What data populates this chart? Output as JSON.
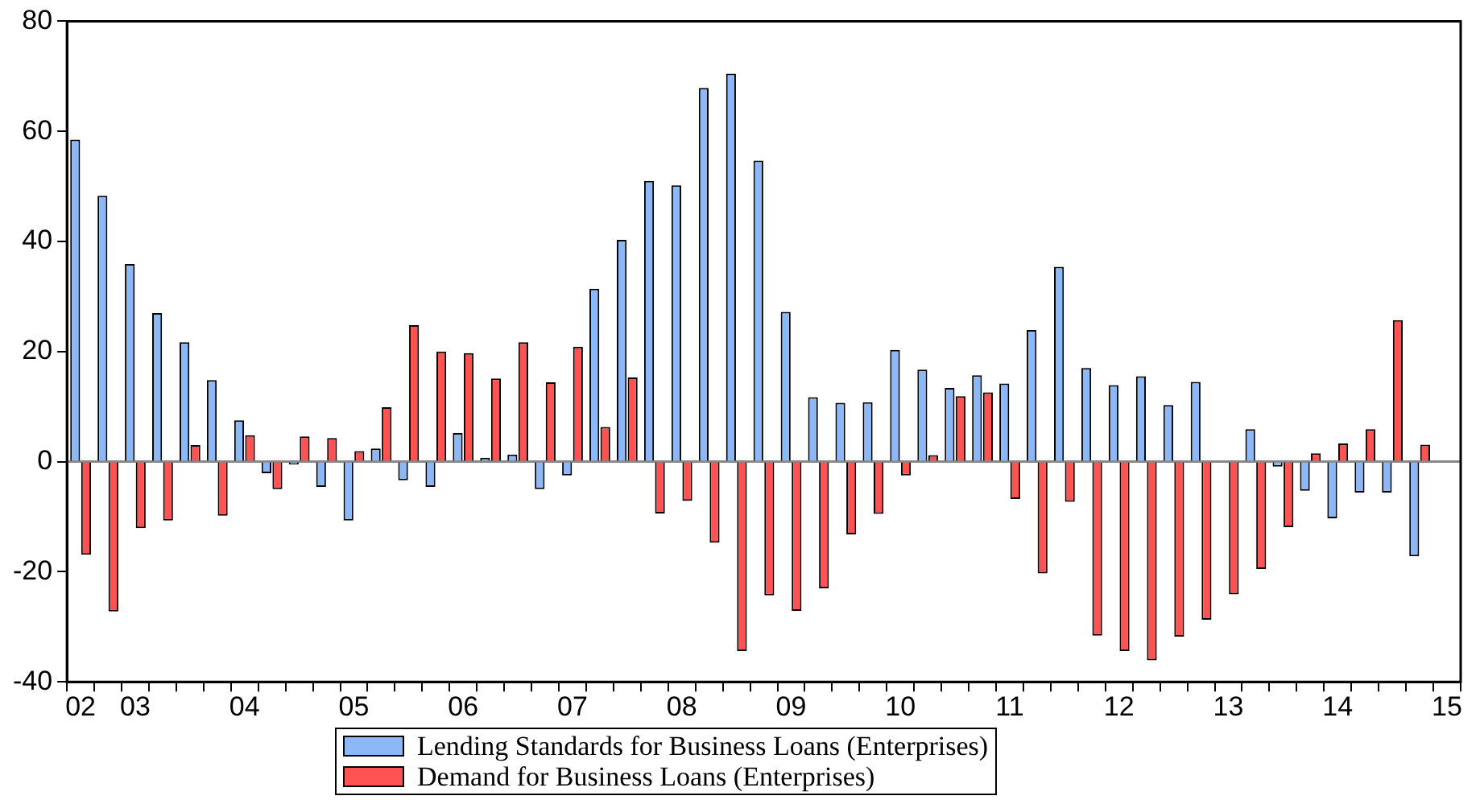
{
  "chart_data": {
    "type": "bar",
    "categories": [
      "02",
      null,
      "03",
      null,
      null,
      null,
      "04",
      null,
      null,
      null,
      "05",
      null,
      null,
      null,
      "06",
      null,
      null,
      null,
      "07",
      null,
      null,
      null,
      "08",
      null,
      null,
      null,
      "09",
      null,
      null,
      null,
      "10",
      null,
      null,
      null,
      "11",
      null,
      null,
      null,
      "12",
      null,
      null,
      null,
      "13",
      null,
      null,
      null,
      "14",
      null,
      null,
      null,
      "15"
    ],
    "series": [
      {
        "name": "Lending Standards for Business Loans (Enterprises)",
        "color": "#8cb8f8",
        "values": [
          58.5,
          48.3,
          35.9,
          27.0,
          21.7,
          14.8,
          7.5,
          -2.1,
          -0.5,
          -4.6,
          -10.7,
          2.4,
          -3.4,
          -4.6,
          5.2,
          0.7,
          1.3,
          -5.0,
          -2.5,
          31.4,
          40.3,
          51.0,
          50.2,
          67.9,
          70.5,
          54.7,
          27.2,
          11.7,
          10.7,
          10.8,
          20.3,
          16.7,
          13.4,
          15.7,
          14.2,
          23.9,
          35.4,
          17.0,
          13.9,
          15.5,
          10.3,
          14.5,
          0,
          5.9,
          -0.9,
          -5.3,
          -10.3,
          -5.6,
          -5.6,
          -17.2,
          null
        ]
      },
      {
        "name": "Demand for Business Loans (Enterprises)",
        "color": "#ff5252",
        "values": [
          -16.9,
          -27.2,
          -12.1,
          -10.7,
          3.0,
          -9.8,
          4.8,
          -5.0,
          4.6,
          4.3,
          1.9,
          9.9,
          24.8,
          20.0,
          19.7,
          15.1,
          21.7,
          14.4,
          20.9,
          6.3,
          15.3,
          -9.4,
          -7.1,
          -14.7,
          -34.4,
          -24.3,
          -27.1,
          -23.0,
          -13.2,
          -9.5,
          -2.5,
          1.2,
          11.9,
          12.6,
          -6.8,
          -20.3,
          -7.3,
          -31.6,
          -34.4,
          -36.1,
          -31.8,
          -28.7,
          -24.1,
          -19.5,
          -11.9,
          1.5,
          3.3,
          5.9,
          25.7,
          3.1,
          null
        ]
      }
    ],
    "ylim": [
      -40,
      80
    ],
    "yticks": [
      -40,
      -20,
      0,
      20,
      40,
      60,
      80
    ],
    "ref_lines": [
      {
        "axis": "y",
        "value": 0
      }
    ],
    "legend": "bottom",
    "grid": false
  }
}
